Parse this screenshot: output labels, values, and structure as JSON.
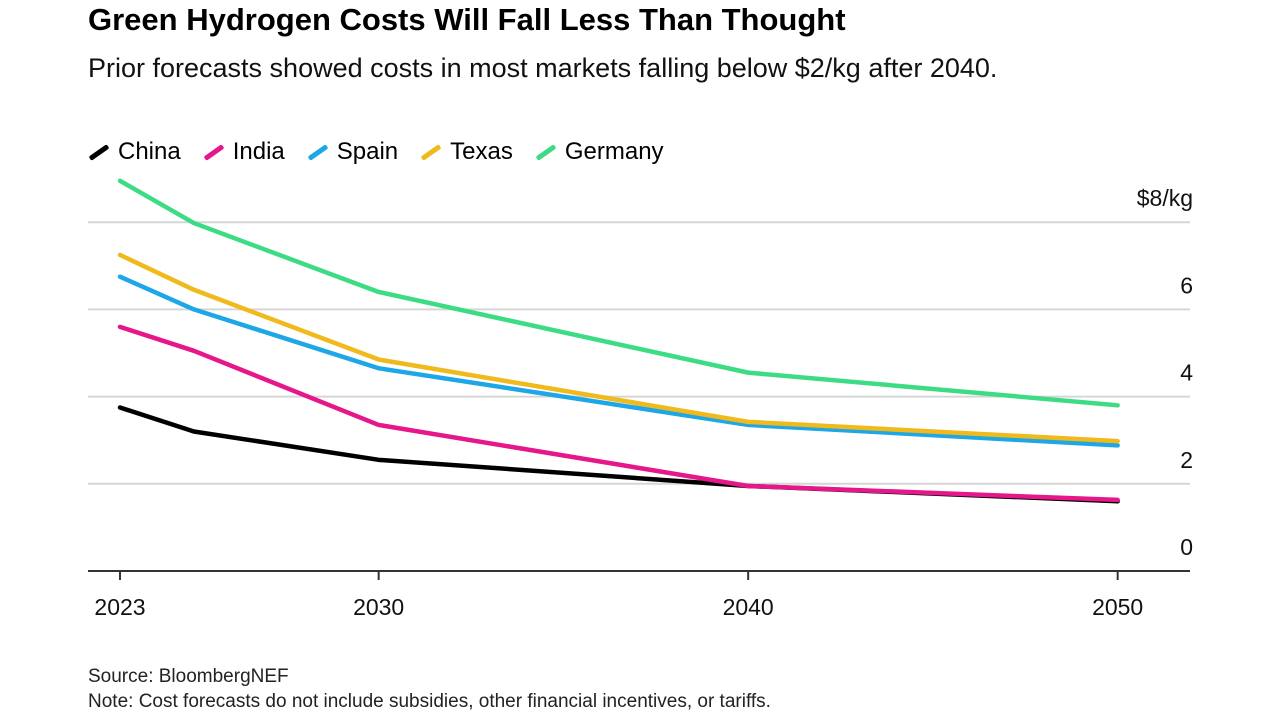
{
  "header": {
    "title": "Green Hydrogen Costs Will Fall Less Than Thought",
    "subtitle": "Prior forecasts showed costs in most markets falling below $2/kg after 2040."
  },
  "footer": {
    "source": "Source: BloombergNEF",
    "note": "Note: Cost forecasts do not include subsidies, other financial incentives, or tariffs."
  },
  "chart_data": {
    "type": "line",
    "title": "Green Hydrogen Costs Will Fall Less Than Thought",
    "x": [
      2023,
      2025,
      2030,
      2040,
      2050
    ],
    "xticks": [
      "2023",
      "2030",
      "2040",
      "2050"
    ],
    "yticks": [
      "0",
      "2",
      "4",
      "6",
      "$8/kg"
    ],
    "ylim": [
      0,
      8
    ],
    "xlim": [
      2022,
      2052
    ],
    "grid": true,
    "legend": "top-left",
    "unit": "$/kg",
    "series": [
      {
        "name": "China",
        "color": "#000000",
        "values": [
          3.75,
          3.2,
          2.55,
          1.95,
          1.6
        ]
      },
      {
        "name": "India",
        "color": "#e5178a",
        "values": [
          5.6,
          5.05,
          3.35,
          1.95,
          1.63
        ]
      },
      {
        "name": "Spain",
        "color": "#1ea7e6",
        "values": [
          6.75,
          6.0,
          4.65,
          3.35,
          2.88
        ]
      },
      {
        "name": "Texas",
        "color": "#f0b91c",
        "values": [
          7.25,
          6.45,
          4.85,
          3.42,
          2.98
        ]
      },
      {
        "name": "Germany",
        "color": "#3ddc84",
        "values": [
          8.95,
          7.98,
          6.4,
          4.55,
          3.8
        ]
      }
    ]
  }
}
